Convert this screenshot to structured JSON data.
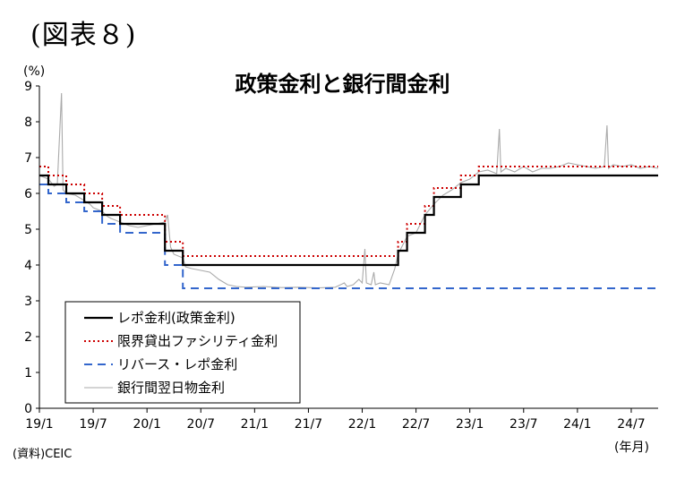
{
  "figure_label": "(図表８)",
  "source_note": "(資料)CEIC",
  "chart_data": {
    "type": "line",
    "title": "政策金利と銀行間金利",
    "y_unit_label": "(%)",
    "x_unit_label": "(年月)",
    "ylim": [
      0,
      9
    ],
    "yticks": [
      "0",
      "1",
      "2",
      "3",
      "4",
      "5",
      "6",
      "7",
      "8",
      "9"
    ],
    "x_range": [
      "2019-01",
      "2024-10"
    ],
    "xticks": [
      {
        "label": "19/1",
        "date": "2019-01"
      },
      {
        "label": "19/7",
        "date": "2019-07"
      },
      {
        "label": "20/1",
        "date": "2020-01"
      },
      {
        "label": "20/7",
        "date": "2020-07"
      },
      {
        "label": "21/1",
        "date": "2021-01"
      },
      {
        "label": "21/7",
        "date": "2021-07"
      },
      {
        "label": "22/1",
        "date": "2022-01"
      },
      {
        "label": "22/7",
        "date": "2022-07"
      },
      {
        "label": "23/1",
        "date": "2023-01"
      },
      {
        "label": "23/7",
        "date": "2023-07"
      },
      {
        "label": "24/1",
        "date": "2024-01"
      },
      {
        "label": "24/7",
        "date": "2024-07"
      }
    ],
    "grid": false,
    "legend_position": "bottom-left",
    "series": [
      {
        "name": "レポ金利(政策金利)",
        "color": "#000000",
        "style": "solid",
        "step": true,
        "points": [
          [
            "2019-01",
            6.5
          ],
          [
            "2019-02",
            6.25
          ],
          [
            "2019-04",
            6.0
          ],
          [
            "2019-06",
            5.75
          ],
          [
            "2019-08",
            5.4
          ],
          [
            "2019-10",
            5.15
          ],
          [
            "2020-03",
            4.4
          ],
          [
            "2020-05",
            4.0
          ],
          [
            "2022-05",
            4.4
          ],
          [
            "2022-06",
            4.9
          ],
          [
            "2022-08",
            5.4
          ],
          [
            "2022-09",
            5.9
          ],
          [
            "2022-12",
            6.25
          ],
          [
            "2023-02",
            6.5
          ],
          [
            "2024-10",
            6.5
          ]
        ]
      },
      {
        "name": "限界貸出ファシリティ金利",
        "color": "#cc0000",
        "style": "dotted",
        "step": true,
        "points": [
          [
            "2019-01",
            6.75
          ],
          [
            "2019-02",
            6.5
          ],
          [
            "2019-04",
            6.25
          ],
          [
            "2019-06",
            6.0
          ],
          [
            "2019-08",
            5.65
          ],
          [
            "2019-10",
            5.4
          ],
          [
            "2020-03",
            4.65
          ],
          [
            "2020-05",
            4.25
          ],
          [
            "2022-05",
            4.65
          ],
          [
            "2022-06",
            5.15
          ],
          [
            "2022-08",
            5.65
          ],
          [
            "2022-09",
            6.15
          ],
          [
            "2022-12",
            6.5
          ],
          [
            "2023-02",
            6.75
          ],
          [
            "2024-10",
            6.75
          ]
        ]
      },
      {
        "name": "リバース・レポ金利",
        "color": "#3366cc",
        "style": "dashed",
        "step": true,
        "points": [
          [
            "2019-01",
            6.25
          ],
          [
            "2019-02",
            6.0
          ],
          [
            "2019-04",
            5.75
          ],
          [
            "2019-06",
            5.5
          ],
          [
            "2019-08",
            5.15
          ],
          [
            "2019-10",
            4.9
          ],
          [
            "2020-03",
            4.0
          ],
          [
            "2020-05",
            3.35
          ],
          [
            "2024-10",
            3.35
          ]
        ]
      },
      {
        "name": "銀行間翌日物金利",
        "color": "#aaaaaa",
        "style": "solid",
        "step": false,
        "points": [
          [
            "2019-01",
            6.5
          ],
          [
            "2019-02",
            6.4
          ],
          [
            "2019-02-20",
            6.2
          ],
          [
            "2019-03",
            6.25
          ],
          [
            "2019-03-15",
            8.8
          ],
          [
            "2019-03-20",
            6.1
          ],
          [
            "2019-04",
            6.0
          ],
          [
            "2019-05",
            5.95
          ],
          [
            "2019-06",
            5.8
          ],
          [
            "2019-06-20",
            5.7
          ],
          [
            "2019-07",
            5.6
          ],
          [
            "2019-08",
            5.5
          ],
          [
            "2019-08-20",
            5.35
          ],
          [
            "2019-09",
            5.3
          ],
          [
            "2019-10",
            5.2
          ],
          [
            "2019-11",
            5.1
          ],
          [
            "2019-12",
            5.05
          ],
          [
            "2020-01",
            5.1
          ],
          [
            "2020-02",
            5.15
          ],
          [
            "2020-03",
            5.2
          ],
          [
            "2020-03-10",
            5.4
          ],
          [
            "2020-03-20",
            4.5
          ],
          [
            "2020-04",
            4.3
          ],
          [
            "2020-05",
            4.2
          ],
          [
            "2020-05-10",
            3.95
          ],
          [
            "2020-06",
            3.9
          ],
          [
            "2020-07",
            3.85
          ],
          [
            "2020-08",
            3.8
          ],
          [
            "2020-09",
            3.6
          ],
          [
            "2020-10",
            3.45
          ],
          [
            "2020-11",
            3.4
          ],
          [
            "2020-12",
            3.38
          ],
          [
            "2021-02",
            3.4
          ],
          [
            "2021-04",
            3.37
          ],
          [
            "2021-06",
            3.38
          ],
          [
            "2021-08",
            3.36
          ],
          [
            "2021-10",
            3.38
          ],
          [
            "2021-11",
            3.5
          ],
          [
            "2021-11-10",
            3.4
          ],
          [
            "2021-12",
            3.45
          ],
          [
            "2021-12-20",
            3.6
          ],
          [
            "2022-01",
            3.5
          ],
          [
            "2022-01-10",
            4.45
          ],
          [
            "2022-01-15",
            3.5
          ],
          [
            "2022-02",
            3.45
          ],
          [
            "2022-02-10",
            3.8
          ],
          [
            "2022-02-15",
            3.45
          ],
          [
            "2022-03",
            3.5
          ],
          [
            "2022-04",
            3.45
          ],
          [
            "2022-04-20",
            3.9
          ],
          [
            "2022-05",
            4.3
          ],
          [
            "2022-06",
            4.8
          ],
          [
            "2022-07",
            4.9
          ],
          [
            "2022-08",
            5.4
          ],
          [
            "2022-09",
            5.7
          ],
          [
            "2022-10",
            5.95
          ],
          [
            "2022-11",
            6.1
          ],
          [
            "2022-12",
            6.3
          ],
          [
            "2023-01",
            6.4
          ],
          [
            "2023-02",
            6.6
          ],
          [
            "2023-03",
            6.65
          ],
          [
            "2023-04",
            6.55
          ],
          [
            "2023-04-10",
            7.8
          ],
          [
            "2023-04-15",
            6.6
          ],
          [
            "2023-05",
            6.7
          ],
          [
            "2023-06",
            6.6
          ],
          [
            "2023-07",
            6.75
          ],
          [
            "2023-08",
            6.6
          ],
          [
            "2023-09",
            6.7
          ],
          [
            "2023-10",
            6.7
          ],
          [
            "2023-11",
            6.75
          ],
          [
            "2023-12",
            6.85
          ],
          [
            "2024-01",
            6.8
          ],
          [
            "2024-02",
            6.75
          ],
          [
            "2024-03",
            6.7
          ],
          [
            "2024-04",
            6.75
          ],
          [
            "2024-04-10",
            7.9
          ],
          [
            "2024-04-15",
            6.7
          ],
          [
            "2024-05",
            6.8
          ],
          [
            "2024-06",
            6.75
          ],
          [
            "2024-07",
            6.8
          ],
          [
            "2024-08",
            6.7
          ],
          [
            "2024-09",
            6.75
          ],
          [
            "2024-10",
            6.7
          ]
        ]
      }
    ]
  }
}
